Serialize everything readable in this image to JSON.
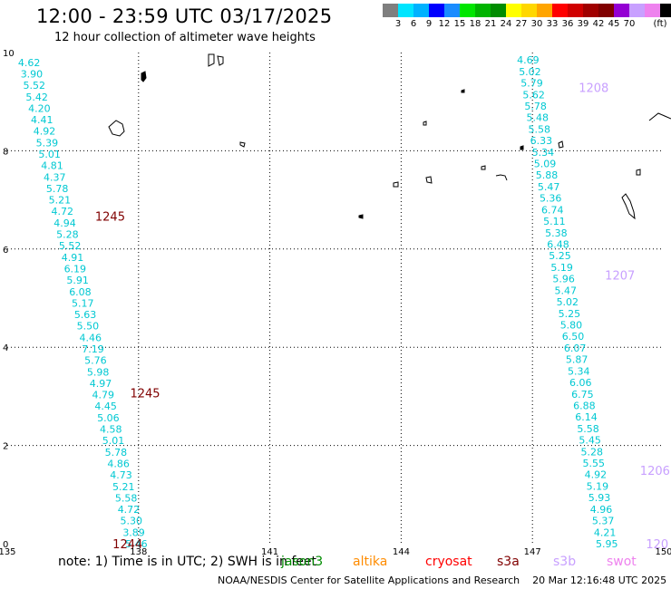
{
  "header": {
    "title": "12:00 - 23:59 UTC 03/17/2025",
    "subtitle": "12 hour collection of altimeter wave heights"
  },
  "colorbar": {
    "colors": [
      "#7f7f7f",
      "#00e5ff",
      "#00b2ff",
      "#0000ff",
      "#1a8cff",
      "#00e600",
      "#00b400",
      "#008c00",
      "#ffff00",
      "#ffd700",
      "#ffa500",
      "#ff0000",
      "#d00000",
      "#a00000",
      "#800000",
      "#9400d3",
      "#c8a0ff",
      "#ee82ee",
      "#000000"
    ],
    "labels": [
      "3",
      "6",
      "9",
      "12",
      "15",
      "18",
      "21",
      "24",
      "27",
      "30",
      "33",
      "36",
      "39",
      "42",
      "45",
      "70",
      "(ft)"
    ]
  },
  "axes": {
    "x_ticks": [
      "135",
      "138",
      "141",
      "144",
      "147",
      "150"
    ],
    "y_ticks": [
      "0",
      "2",
      "4",
      "6",
      "8",
      "10"
    ],
    "xlim": [
      135,
      150
    ],
    "ylim": [
      0,
      10
    ]
  },
  "tracks": [
    {
      "satellite": "jason3",
      "lon_start": 135.5,
      "lat_start": 9.8,
      "lon_end": 137.95,
      "lat_end": 0.0,
      "values": [
        "4.62",
        "3.90",
        "5.52",
        "5.42",
        "4.20",
        "4.41",
        "4.92",
        "5.39",
        "5.01",
        "4.81",
        "4.37",
        "5.78",
        "5.21",
        "4.72",
        "4.94",
        "5.28",
        "5.52",
        "4.91",
        "6.19",
        "5.91",
        "6.08",
        "5.17",
        "5.63",
        "5.50",
        "4.46",
        "7.19",
        "5.76",
        "5.98",
        "4.97",
        "4.79",
        "4.45",
        "5.06",
        "4.58",
        "5.01",
        "5.78",
        "4.86",
        "4.73",
        "5.21",
        "5.58",
        "4.72",
        "5.30",
        "3.89",
        "5.46"
      ],
      "times": [
        {
          "label": "1245",
          "lon": 137.35,
          "lat": 6.65,
          "color": "#800000"
        },
        {
          "label": "1245",
          "lon": 138.15,
          "lat": 3.05,
          "color": "#800000"
        },
        {
          "label": "1244",
          "lon": 137.75,
          "lat": -0.02,
          "color": "#800000"
        }
      ]
    },
    {
      "satellite": "s3b",
      "lon_start": 146.9,
      "lat_start": 9.85,
      "lon_end": 148.7,
      "lat_end": 0.0,
      "values": [
        "4.69",
        "5.02",
        "5.79",
        "5.62",
        "5.78",
        "5.48",
        "5.58",
        "6.33",
        "5.34",
        "5.09",
        "5.88",
        "5.47",
        "5.36",
        "6.74",
        "5.11",
        "5.38",
        "6.48",
        "5.25",
        "5.19",
        "5.96",
        "5.47",
        "5.02",
        "5.25",
        "5.80",
        "6.50",
        "6.07",
        "5.87",
        "5.34",
        "6.06",
        "6.75",
        "6.88",
        "6.14",
        "5.58",
        "5.45",
        "5.28",
        "5.55",
        "4.92",
        "5.19",
        "5.93",
        "4.96",
        "5.37",
        "4.21",
        "5.95"
      ],
      "times": [
        {
          "label": "1208",
          "lon": 148.4,
          "lat": 9.27,
          "color": "#c8a0ff"
        },
        {
          "label": "1207",
          "lon": 149.0,
          "lat": 5.45,
          "color": "#c8a0ff"
        },
        {
          "label": "1206",
          "lon": 149.8,
          "lat": 1.48,
          "color": "#c8a0ff"
        },
        {
          "label": "120",
          "lon": 149.85,
          "lat": -0.02,
          "color": "#c8a0ff"
        }
      ]
    }
  ],
  "footer": {
    "note": "note:  1) Time is in UTC;  2) SWH is in feet",
    "satellites": [
      {
        "name": "jason3",
        "color": "#008c00"
      },
      {
        "name": "altika",
        "color": "#ff8c00"
      },
      {
        "name": "cryosat",
        "color": "#ff0000"
      },
      {
        "name": "s3a",
        "color": "#800000"
      },
      {
        "name": "s3b",
        "color": "#c8a0ff"
      },
      {
        "name": "swot",
        "color": "#ee82ee"
      }
    ],
    "credit": "NOAA/NESDIS Center for Satellite Applications and Research",
    "timestamp": "20 Mar 12:16:48 UTC 2025"
  }
}
